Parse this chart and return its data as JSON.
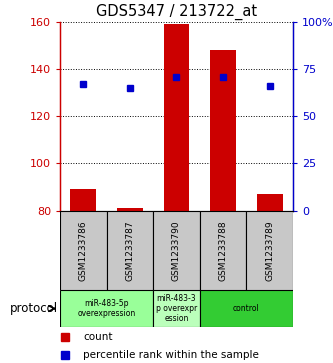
{
  "title": "GDS5347 / 213722_at",
  "samples": [
    "GSM1233786",
    "GSM1233787",
    "GSM1233790",
    "GSM1233788",
    "GSM1233789"
  ],
  "counts": [
    89,
    81,
    159,
    148,
    87
  ],
  "percentiles": [
    67,
    65,
    71,
    71,
    66
  ],
  "ymin": 80,
  "ymax": 160,
  "yticks_left": [
    80,
    100,
    120,
    140,
    160
  ],
  "yticks_right": [
    0,
    25,
    50,
    75,
    100
  ],
  "bar_color": "#cc0000",
  "dot_color": "#0000cc",
  "protocol_groups": [
    {
      "label": "miR-483-5p\noverexpression",
      "indices": [
        0,
        1
      ],
      "color": "#99ff99"
    },
    {
      "label": "miR-483-3\np overexpr\nession",
      "indices": [
        2
      ],
      "color": "#bbffbb"
    },
    {
      "label": "control",
      "indices": [
        3,
        4
      ],
      "color": "#33cc33"
    }
  ],
  "protocol_label": "protocol",
  "legend_count_label": "count",
  "legend_pct_label": "percentile rank within the sample",
  "sample_box_color": "#c8c8c8",
  "background_color": "#ffffff"
}
